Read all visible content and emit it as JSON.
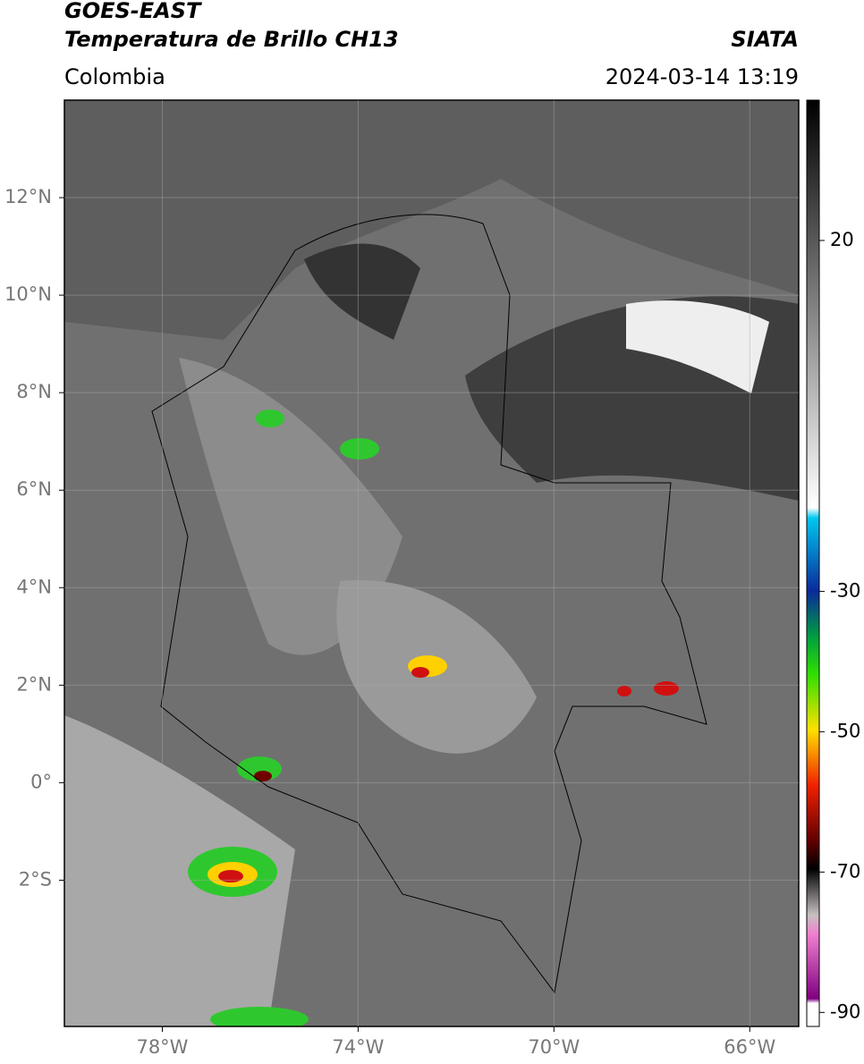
{
  "header": {
    "title": "GOES-EAST",
    "subtitle": "Temperatura de Brillo CH13",
    "agency": "SIATA",
    "region": "Colombia",
    "datetime": "2024-03-14 13:19"
  },
  "map": {
    "xlim": [
      -80,
      -65
    ],
    "ylim": [
      -5,
      14
    ],
    "grid": true,
    "xticks": [
      {
        "value": -78,
        "label": "78°W"
      },
      {
        "value": -74,
        "label": "74°W"
      },
      {
        "value": -70,
        "label": "70°W"
      },
      {
        "value": -66,
        "label": "66°W"
      }
    ],
    "yticks": [
      {
        "value": 12,
        "label": "12°N"
      },
      {
        "value": 10,
        "label": "10°N"
      },
      {
        "value": 8,
        "label": "8°N"
      },
      {
        "value": 6,
        "label": "6°N"
      },
      {
        "value": 4,
        "label": "4°N"
      },
      {
        "value": 2,
        "label": "2°N"
      },
      {
        "value": 0,
        "label": "0°"
      },
      {
        "value": -2,
        "label": "2°S"
      }
    ]
  },
  "colorbar": {
    "lim": [
      -92,
      40
    ],
    "ticks": [
      20,
      -30,
      -50,
      -70,
      -90
    ]
  }
}
